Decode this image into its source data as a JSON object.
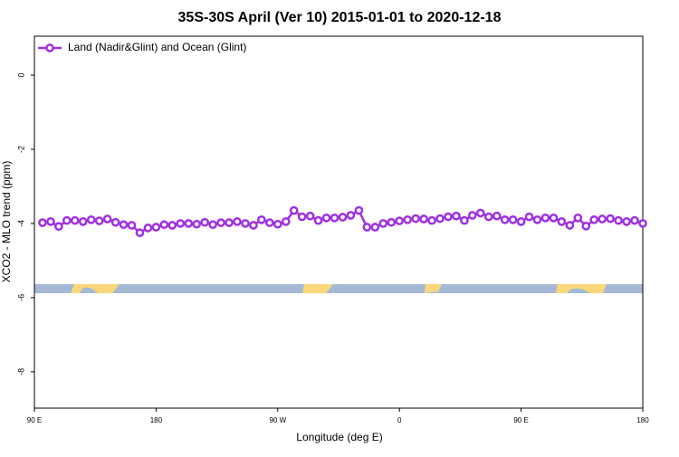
{
  "chart_data": {
    "type": "line",
    "title": "35S-30S April (Ver 10)   2015-01-01 to 2020-12-18",
    "x_label": "Longitude (deg E)",
    "y_label": "XCO2 - MLO trend (ppm)",
    "x": [
      96,
      102,
      108,
      114,
      120,
      126,
      132,
      138,
      144,
      150,
      156,
      162,
      168,
      174,
      180,
      186,
      192,
      198,
      204,
      210,
      216,
      222,
      228,
      234,
      240,
      246,
      252,
      258,
      264,
      270,
      276,
      282,
      288,
      294,
      300,
      306,
      312,
      318,
      324,
      330,
      336,
      342,
      348,
      354,
      360,
      366,
      372,
      378,
      384,
      390,
      396,
      402,
      408,
      414,
      420,
      426,
      432,
      438,
      444,
      450,
      456,
      462,
      468,
      474,
      480,
      486,
      492,
      498,
      504,
      510,
      516,
      522,
      528,
      534,
      540
    ],
    "series": [
      {
        "name": "Land (Nadir&Glint) and Ocean (Glint)",
        "color": "#a030e0",
        "values": [
          -3.98,
          -3.95,
          -4.08,
          -3.92,
          -3.92,
          -3.95,
          -3.9,
          -3.93,
          -3.88,
          -3.97,
          -4.03,
          -4.05,
          -4.25,
          -4.12,
          -4.1,
          -4.03,
          -4.05,
          -4.0,
          -4.0,
          -4.02,
          -3.97,
          -4.03,
          -3.98,
          -3.98,
          -3.95,
          -4.0,
          -4.05,
          -3.9,
          -3.98,
          -4.02,
          -3.95,
          -3.65,
          -3.82,
          -3.8,
          -3.92,
          -3.85,
          -3.85,
          -3.83,
          -3.78,
          -3.65,
          -4.1,
          -4.1,
          -4.0,
          -3.97,
          -3.93,
          -3.9,
          -3.87,
          -3.88,
          -3.92,
          -3.87,
          -3.82,
          -3.8,
          -3.92,
          -3.78,
          -3.72,
          -3.82,
          -3.8,
          -3.9,
          -3.9,
          -3.95,
          -3.82,
          -3.9,
          -3.85,
          -3.85,
          -3.95,
          -4.05,
          -3.85,
          -4.07,
          -3.9,
          -3.88,
          -3.87,
          -3.92,
          -3.95,
          -3.92,
          -4.0
        ]
      }
    ],
    "xlim": [
      90,
      540
    ],
    "xticks": [
      {
        "value": 90,
        "label": "90 E"
      },
      180,
      {
        "value": 270,
        "label": "90 W"
      },
      {
        "value": 360,
        "label": "0"
      },
      {
        "value": 450,
        "label": "90 E"
      },
      180
    ],
    "ylim": [
      -8.98,
      1.05
    ],
    "yticks": [
      0,
      -2,
      -4,
      -6,
      -8
    ],
    "legend": "upper left"
  }
}
